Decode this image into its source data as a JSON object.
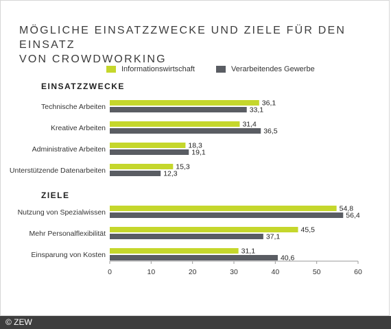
{
  "title_lines": [
    "MÖGLICHE EINSATZZWECKE UND ZIELE FÜR DEN EINSATZ",
    "VON CROWDWORKING"
  ],
  "legend": {
    "series1": "Informationswirtschaft",
    "series2": "Verarbeitendes Gewerbe"
  },
  "colors": {
    "series1": "#c5d72c",
    "series2": "#5a5d63"
  },
  "sections": {
    "einsatz": "EINSATZZWECKE",
    "ziele": "ZIELE"
  },
  "chart_data": {
    "type": "bar",
    "orientation": "horizontal",
    "xlim": [
      0,
      60
    ],
    "xticks": [
      "0",
      "10",
      "20",
      "30",
      "40",
      "50",
      "60"
    ],
    "groups": [
      {
        "name": "EINSATZZWECKE",
        "categories": [
          "Technische Arbeiten",
          "Kreative Arbeiten",
          "Administrative Arbeiten",
          "Unterstützende Datenarbeiten"
        ],
        "series": [
          {
            "name": "Informationswirtschaft",
            "values": [
              36.1,
              31.4,
              18.3,
              15.3
            ],
            "labels": [
              "36,1",
              "31,4",
              "18,3",
              "15,3"
            ]
          },
          {
            "name": "Verarbeitendes Gewerbe",
            "values": [
              33.1,
              36.5,
              19.1,
              12.3
            ],
            "labels": [
              "33,1",
              "36,5",
              "19,1",
              "12,3"
            ]
          }
        ]
      },
      {
        "name": "ZIELE",
        "categories": [
          "Nutzung von Spezialwissen",
          "Mehr Personalflexibilität",
          "Einsparung von Kosten"
        ],
        "series": [
          {
            "name": "Informationswirtschaft",
            "values": [
              54.8,
              45.5,
              31.1
            ],
            "labels": [
              "54,8",
              "45,5",
              "31,1"
            ]
          },
          {
            "name": "Verarbeitendes Gewerbe",
            "values": [
              56.4,
              37.1,
              40.6
            ],
            "labels": [
              "56,4",
              "37,1",
              "40,6"
            ]
          }
        ]
      }
    ]
  },
  "footer": "© ZEW"
}
